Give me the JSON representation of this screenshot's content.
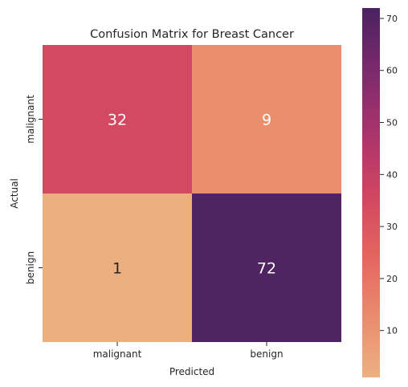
{
  "chart_data": {
    "type": "heatmap",
    "title": "Confusion Matrix for Breast Cancer",
    "xlabel": "Predicted",
    "ylabel": "Actual",
    "x_categories": [
      "malignant",
      "benign"
    ],
    "y_categories": [
      "malignant",
      "benign"
    ],
    "values": [
      [
        32,
        9
      ],
      [
        1,
        72
      ]
    ],
    "colormap": "flare",
    "colorbar": {
      "min": 1,
      "max": 72,
      "ticks": [
        10,
        20,
        30,
        40,
        50,
        60,
        70
      ]
    },
    "cell_colors": [
      [
        "#d14a61",
        "#e98f6c"
      ],
      [
        "#ecaf7f",
        "#4f2461"
      ]
    ],
    "annotation_colors": [
      [
        "#ffffff",
        "#ffffff"
      ],
      [
        "#262626",
        "#ffffff"
      ]
    ],
    "colorbar_stops": [
      "#edb081",
      "#ea8b6d",
      "#e46460",
      "#cf4562",
      "#a9336c",
      "#7a2a6d",
      "#4b2260"
    ]
  }
}
